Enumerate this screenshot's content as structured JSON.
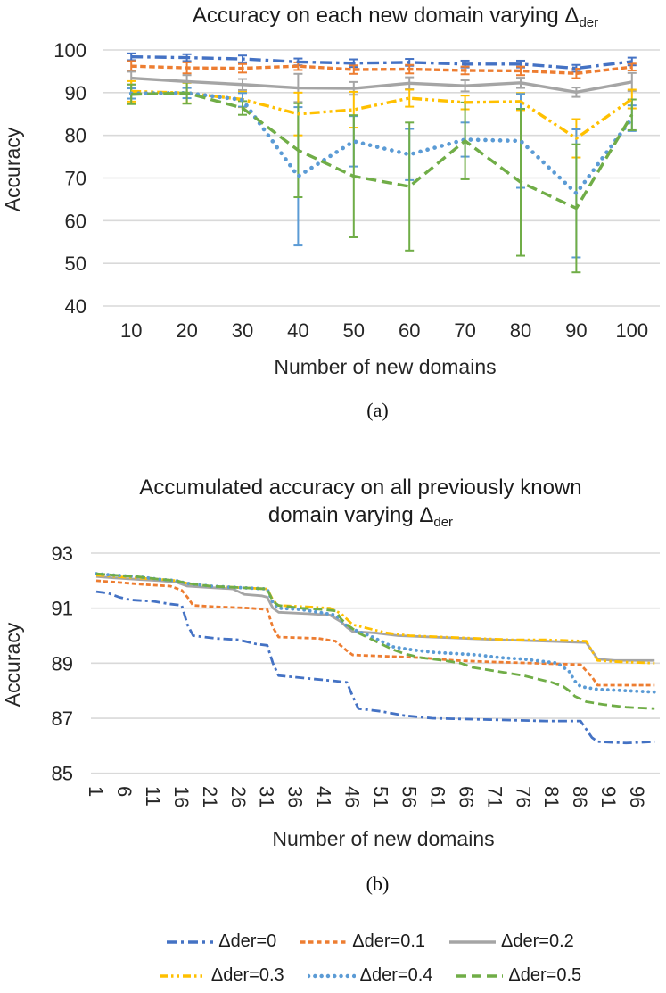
{
  "captions": {
    "a": "(a)",
    "b": "(b)"
  },
  "legend": {
    "items": [
      {
        "label": "Δder=0",
        "color": "#4472C4",
        "style": "dashdot"
      },
      {
        "label": "Δder=0.1",
        "color": "#ED7D31",
        "style": "dash"
      },
      {
        "label": "Δder=0.2",
        "color": "#A5A5A5",
        "style": "solid"
      },
      {
        "label": "Δder=0.3",
        "color": "#FFC000",
        "style": "dashdotdot"
      },
      {
        "label": "Δder=0.4",
        "color": "#5B9BD5",
        "style": "dot"
      },
      {
        "label": "Δder=0.5",
        "color": "#70AD47",
        "style": "longdash"
      }
    ],
    "per_row": 3
  },
  "chart_data": [
    {
      "id": "a",
      "type": "line",
      "title_text": "Accuracy on each new domain varying Δ",
      "title_sub": "der",
      "xlabel": "Number of new domains",
      "ylabel": "Accuracy",
      "x": [
        10,
        20,
        30,
        40,
        50,
        60,
        70,
        80,
        90,
        100
      ],
      "ylim": [
        40,
        100
      ],
      "yticks": [
        40,
        50,
        60,
        70,
        80,
        90,
        100
      ],
      "grid": true,
      "legend_position": "none",
      "series": [
        {
          "name": "Δder=0",
          "color": "#4472C4",
          "style": "dashdot",
          "values": [
            98.4,
            98.2,
            97.9,
            97.2,
            96.9,
            97.1,
            96.7,
            96.7,
            95.7,
            97.3
          ],
          "err": [
            0.8,
            0.8,
            0.8,
            0.8,
            0.9,
            0.8,
            0.8,
            0.8,
            0.8,
            0.9
          ]
        },
        {
          "name": "Δder=0.1",
          "color": "#ED7D31",
          "style": "dash",
          "values": [
            96.2,
            95.8,
            95.7,
            96.2,
            95.4,
            95.5,
            95.2,
            95.1,
            94.5,
            96.0
          ],
          "err": [
            1.2,
            1.3,
            1.0,
            0.9,
            1.0,
            1.0,
            0.9,
            1.0,
            1.1,
            0.8
          ]
        },
        {
          "name": "Δder=0.2",
          "color": "#A5A5A5",
          "style": "solid",
          "values": [
            93.4,
            92.6,
            91.9,
            91.1,
            91.0,
            92.2,
            91.6,
            92.3,
            90.1,
            92.5
          ],
          "err": [
            1.5,
            1.5,
            1.3,
            3.3,
            1.5,
            1.4,
            1.3,
            1.2,
            1.1,
            2.1
          ]
        },
        {
          "name": "Δder=0.3",
          "color": "#FFC000",
          "style": "dashdotdot",
          "values": [
            90.3,
            89.9,
            88.4,
            85.0,
            86.0,
            88.7,
            87.7,
            87.9,
            79.3,
            88.5
          ],
          "err": [
            2.4,
            2.4,
            1.8,
            5.0,
            4.2,
            2.0,
            1.6,
            2.0,
            4.5,
            2.2
          ]
        },
        {
          "name": "Δder=0.4",
          "color": "#5B9BD5",
          "style": "dot",
          "values": [
            89.8,
            89.9,
            88.3,
            70.4,
            78.6,
            75.5,
            79.0,
            78.7,
            66.4,
            84.0
          ],
          "err": [
            1.2,
            1.2,
            1.6,
            16.2,
            5.9,
            6.0,
            4.0,
            11.0,
            15.0,
            3.0
          ]
        },
        {
          "name": "Δder=0.5",
          "color": "#70AD47",
          "style": "longdash",
          "values": [
            89.6,
            89.9,
            86.4,
            76.5,
            70.4,
            68.0,
            78.7,
            69.0,
            62.9,
            84.8
          ],
          "err": [
            2.3,
            2.5,
            1.6,
            11.0,
            14.3,
            15.0,
            9.0,
            17.2,
            15.0,
            3.6
          ]
        }
      ]
    },
    {
      "id": "b",
      "type": "line",
      "title_line1": "Accumulated accuracy on all previously known",
      "title_line2": "domain varying Δ",
      "title_sub": "der",
      "xlabel": "Number of new domains",
      "ylabel": "Accuracy",
      "xlim": [
        1,
        100
      ],
      "xticks": [
        1,
        6,
        11,
        16,
        21,
        26,
        31,
        36,
        41,
        46,
        51,
        56,
        61,
        66,
        71,
        76,
        81,
        86,
        91,
        96
      ],
      "ylim": [
        85,
        93
      ],
      "yticks": [
        85,
        87,
        89,
        91,
        93
      ],
      "grid": true,
      "legend_position": "bottom",
      "series": [
        {
          "name": "Δder=0",
          "color": "#4472C4",
          "style": "dashdot",
          "points": [
            [
              1,
              91.6
            ],
            [
              3,
              91.55
            ],
            [
              5,
              91.4
            ],
            [
              7,
              91.3
            ],
            [
              11,
              91.25
            ],
            [
              14,
              91.15
            ],
            [
              16,
              91.1
            ],
            [
              17,
              90.4
            ],
            [
              18,
              90.0
            ],
            [
              22,
              89.9
            ],
            [
              26,
              89.85
            ],
            [
              29,
              89.7
            ],
            [
              31,
              89.65
            ],
            [
              32,
              89.0
            ],
            [
              33,
              88.55
            ],
            [
              38,
              88.45
            ],
            [
              43,
              88.35
            ],
            [
              45,
              88.3
            ],
            [
              46,
              87.8
            ],
            [
              47,
              87.35
            ],
            [
              51,
              87.25
            ],
            [
              55,
              87.1
            ],
            [
              60,
              87.0
            ],
            [
              70,
              86.95
            ],
            [
              80,
              86.9
            ],
            [
              86,
              86.9
            ],
            [
              88,
              86.3
            ],
            [
              89,
              86.15
            ],
            [
              94,
              86.1
            ],
            [
              99,
              86.15
            ]
          ]
        },
        {
          "name": "Δder=0.1",
          "color": "#ED7D31",
          "style": "dash",
          "points": [
            [
              1,
              92.0
            ],
            [
              4,
              91.95
            ],
            [
              7,
              91.9
            ],
            [
              10,
              91.85
            ],
            [
              14,
              91.8
            ],
            [
              16,
              91.65
            ],
            [
              17,
              91.4
            ],
            [
              18,
              91.1
            ],
            [
              22,
              91.05
            ],
            [
              28,
              91.0
            ],
            [
              31,
              90.95
            ],
            [
              32,
              90.3
            ],
            [
              33,
              89.95
            ],
            [
              40,
              89.9
            ],
            [
              43,
              89.8
            ],
            [
              45,
              89.45
            ],
            [
              46,
              89.3
            ],
            [
              52,
              89.25
            ],
            [
              58,
              89.2
            ],
            [
              64,
              89.1
            ],
            [
              70,
              89.05
            ],
            [
              78,
              89.0
            ],
            [
              86,
              88.95
            ],
            [
              88,
              88.5
            ],
            [
              89,
              88.2
            ],
            [
              94,
              88.2
            ],
            [
              99,
              88.2
            ]
          ]
        },
        {
          "name": "Δder=0.2",
          "color": "#A5A5A5",
          "style": "solid",
          "points": [
            [
              1,
              92.15
            ],
            [
              4,
              92.1
            ],
            [
              8,
              92.05
            ],
            [
              12,
              92.0
            ],
            [
              15,
              91.95
            ],
            [
              17,
              91.8
            ],
            [
              21,
              91.75
            ],
            [
              25,
              91.7
            ],
            [
              27,
              91.5
            ],
            [
              30,
              91.45
            ],
            [
              31,
              91.4
            ],
            [
              32,
              91.0
            ],
            [
              33,
              90.85
            ],
            [
              38,
              90.8
            ],
            [
              42,
              90.75
            ],
            [
              44,
              90.5
            ],
            [
              45,
              90.3
            ],
            [
              46,
              90.15
            ],
            [
              50,
              90.1
            ],
            [
              54,
              90.0
            ],
            [
              60,
              89.95
            ],
            [
              66,
              89.9
            ],
            [
              72,
              89.85
            ],
            [
              80,
              89.8
            ],
            [
              87,
              89.75
            ],
            [
              89,
              89.15
            ],
            [
              92,
              89.1
            ],
            [
              99,
              89.1
            ]
          ]
        },
        {
          "name": "Δder=0.3",
          "color": "#FFC000",
          "style": "dashdotdot",
          "points": [
            [
              1,
              92.2
            ],
            [
              4,
              92.15
            ],
            [
              8,
              92.1
            ],
            [
              12,
              92.05
            ],
            [
              15,
              92.0
            ],
            [
              17,
              91.9
            ],
            [
              21,
              91.8
            ],
            [
              26,
              91.75
            ],
            [
              31,
              91.7
            ],
            [
              32,
              91.3
            ],
            [
              33,
              91.1
            ],
            [
              38,
              91.05
            ],
            [
              42,
              91.0
            ],
            [
              44,
              90.8
            ],
            [
              45,
              90.6
            ],
            [
              46,
              90.4
            ],
            [
              49,
              90.25
            ],
            [
              52,
              90.1
            ],
            [
              56,
              90.0
            ],
            [
              62,
              89.95
            ],
            [
              68,
              89.9
            ],
            [
              74,
              89.85
            ],
            [
              80,
              89.85
            ],
            [
              87,
              89.8
            ],
            [
              89,
              89.1
            ],
            [
              93,
              89.05
            ],
            [
              99,
              89.0
            ]
          ]
        },
        {
          "name": "Δder=0.4",
          "color": "#5B9BD5",
          "style": "dot",
          "points": [
            [
              1,
              92.25
            ],
            [
              4,
              92.2
            ],
            [
              8,
              92.15
            ],
            [
              12,
              92.05
            ],
            [
              15,
              92.0
            ],
            [
              17,
              91.9
            ],
            [
              21,
              91.8
            ],
            [
              26,
              91.75
            ],
            [
              31,
              91.7
            ],
            [
              32,
              91.2
            ],
            [
              33,
              91.0
            ],
            [
              37,
              90.95
            ],
            [
              40,
              90.85
            ],
            [
              43,
              90.75
            ],
            [
              44,
              90.55
            ],
            [
              45,
              90.35
            ],
            [
              47,
              90.15
            ],
            [
              49,
              90.0
            ],
            [
              51,
              89.8
            ],
            [
              53,
              89.6
            ],
            [
              56,
              89.5
            ],
            [
              60,
              89.4
            ],
            [
              64,
              89.35
            ],
            [
              68,
              89.3
            ],
            [
              72,
              89.2
            ],
            [
              76,
              89.15
            ],
            [
              80,
              89.05
            ],
            [
              82,
              89.0
            ],
            [
              84,
              88.7
            ],
            [
              85,
              88.35
            ],
            [
              86,
              88.15
            ],
            [
              89,
              88.05
            ],
            [
              94,
              88.0
            ],
            [
              99,
              87.95
            ]
          ]
        },
        {
          "name": "Δder=0.5",
          "color": "#70AD47",
          "style": "longdash",
          "points": [
            [
              1,
              92.25
            ],
            [
              4,
              92.2
            ],
            [
              8,
              92.15
            ],
            [
              12,
              92.05
            ],
            [
              15,
              92.0
            ],
            [
              17,
              91.9
            ],
            [
              21,
              91.8
            ],
            [
              26,
              91.75
            ],
            [
              31,
              91.7
            ],
            [
              32,
              91.25
            ],
            [
              33,
              91.1
            ],
            [
              37,
              91.0
            ],
            [
              41,
              90.95
            ],
            [
              43,
              90.9
            ],
            [
              44,
              90.6
            ],
            [
              45,
              90.4
            ],
            [
              47,
              90.1
            ],
            [
              49,
              89.9
            ],
            [
              51,
              89.7
            ],
            [
              53,
              89.5
            ],
            [
              55,
              89.35
            ],
            [
              58,
              89.2
            ],
            [
              62,
              89.1
            ],
            [
              65,
              89.0
            ],
            [
              67,
              88.85
            ],
            [
              70,
              88.75
            ],
            [
              73,
              88.65
            ],
            [
              76,
              88.55
            ],
            [
              79,
              88.4
            ],
            [
              81,
              88.3
            ],
            [
              83,
              88.15
            ],
            [
              84,
              88.0
            ],
            [
              85,
              87.8
            ],
            [
              87,
              87.6
            ],
            [
              90,
              87.5
            ],
            [
              94,
              87.4
            ],
            [
              99,
              87.35
            ]
          ]
        }
      ]
    }
  ]
}
